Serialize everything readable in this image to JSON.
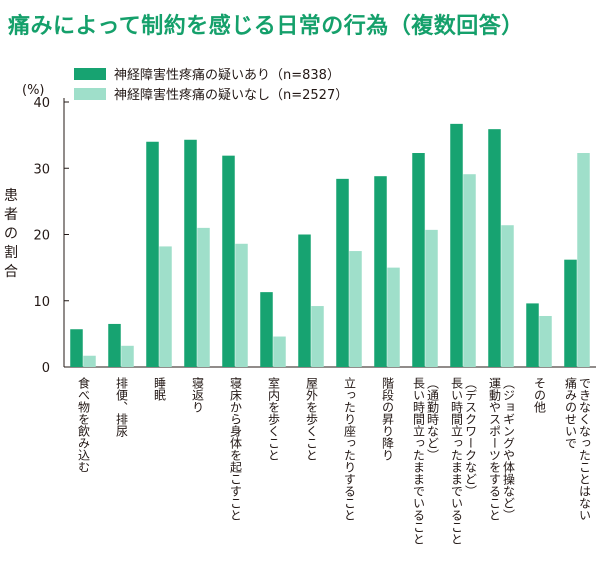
{
  "chart_data": {
    "type": "bar",
    "title": "痛みによって制約を感じる日常の行為（複数回答）",
    "ylabel": "患者の割合",
    "yunit": "(%)",
    "ylim": [
      0,
      40
    ],
    "yticks": [
      0,
      10,
      20,
      30,
      40
    ],
    "grid": false,
    "legend_placement": "top-left",
    "colors": {
      "series1": "#17a371",
      "series2": "#9fdfca",
      "title": "#15a06b"
    },
    "categories": [
      "食べ物を飲み込む",
      "排便、排尿",
      "睡眠",
      "寝返り",
      "寝床から身体を起こすこと",
      "室内を歩くこと",
      "屋外を歩くこと",
      "立ったり座ったりすること",
      "階段の昇り降り",
      "長い時間立ったままでいること（通勤時など）",
      "長い時間立ったままでいること（デスクワークなど）",
      "運動やスポーツをすること（ジョギングや体操など）",
      "その他",
      "痛みのせいでできなくなったことはない"
    ],
    "category_lines": [
      [
        "食べ物を飲み込む"
      ],
      [
        "排便、排尿"
      ],
      [
        "睡眠"
      ],
      [
        "寝返り"
      ],
      [
        "寝床から身体を起こすこと"
      ],
      [
        "室内を歩くこと"
      ],
      [
        "屋外を歩くこと"
      ],
      [
        "立ったり座ったりすること"
      ],
      [
        "階段の昇り降り"
      ],
      [
        "長い時間立ったままでいること",
        "（通勤時など）"
      ],
      [
        "長い時間立ったままでいること",
        "（デスクワークなど）"
      ],
      [
        "運動やスポーツをすること",
        "（ジョギングや体操など）"
      ],
      [
        "その他"
      ],
      [
        "痛みのせいで",
        "できなくなったことはない"
      ]
    ],
    "series": [
      {
        "name": "神経障害性疼痛の疑いあり（n=838）",
        "values": [
          5.7,
          6.5,
          34.0,
          34.3,
          31.9,
          11.3,
          20.0,
          28.4,
          28.8,
          32.3,
          36.7,
          35.9,
          9.6,
          16.2
        ]
      },
      {
        "name": "神経障害性疼痛の疑いなし（n=2527）",
        "values": [
          1.7,
          3.2,
          18.2,
          21.0,
          18.6,
          4.6,
          9.2,
          17.5,
          15.0,
          20.7,
          29.1,
          21.4,
          7.7,
          32.3
        ]
      }
    ]
  }
}
